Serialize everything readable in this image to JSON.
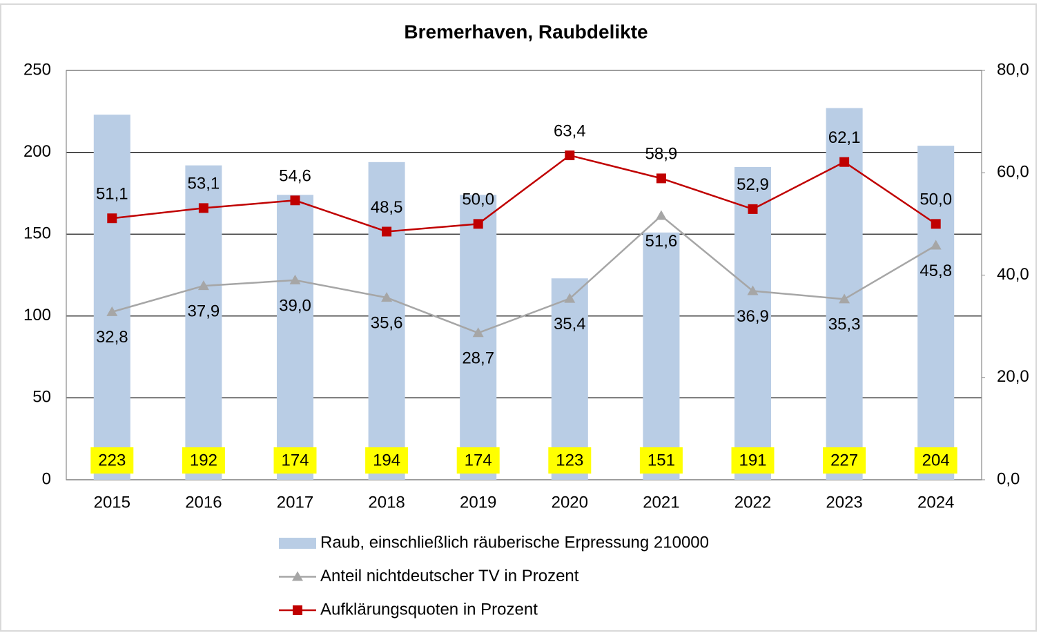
{
  "chart_data": {
    "type": "bar",
    "title": "Bremerhaven, Raubdelikte",
    "categories": [
      "2015",
      "2016",
      "2017",
      "2018",
      "2019",
      "2020",
      "2021",
      "2022",
      "2023",
      "2024"
    ],
    "ylim": [
      0,
      250
    ],
    "yticks": [
      0,
      50,
      100,
      150,
      200,
      250
    ],
    "y2lim": [
      0,
      80
    ],
    "y2ticks": [
      {
        "value": 0,
        "label": "0,0"
      },
      {
        "value": 20,
        "label": "20,0"
      },
      {
        "value": 40,
        "label": "40,0"
      },
      {
        "value": 60,
        "label": "60,0"
      },
      {
        "value": 80,
        "label": "80,0"
      }
    ],
    "grid": true,
    "legend": "bottom",
    "series": [
      {
        "name": "Raub, einschließlich räuberische Erpressung 210000",
        "type": "bar",
        "color": "#b9cde5",
        "label_color": "#ffff00",
        "values": [
          223,
          192,
          174,
          194,
          174,
          123,
          151,
          191,
          227,
          204
        ]
      },
      {
        "name": "Anteil nichtdeutscher TV in Prozent",
        "type": "line",
        "axis": "y2",
        "color": "#a6a6a6",
        "marker": "triangle",
        "label_position": "below",
        "values": [
          32.8,
          37.9,
          39.0,
          35.6,
          28.7,
          35.4,
          51.6,
          36.9,
          35.3,
          45.8
        ],
        "value_labels": [
          "32,8",
          "37,9",
          "39,0",
          "35,6",
          "28,7",
          "35,4",
          "51,6",
          "36,9",
          "35,3",
          "45,8"
        ]
      },
      {
        "name": "Aufklärungsquoten in Prozent",
        "type": "line",
        "axis": "y2",
        "color": "#c00000",
        "marker": "square",
        "label_position": "above",
        "values": [
          51.1,
          53.1,
          54.6,
          48.5,
          50.0,
          63.4,
          58.9,
          52.9,
          62.1,
          50.0
        ],
        "value_labels": [
          "51,1",
          "53,1",
          "54,6",
          "48,5",
          "50,0",
          "63,4",
          "58,9",
          "52,9",
          "62,1",
          "50,0"
        ]
      }
    ]
  }
}
